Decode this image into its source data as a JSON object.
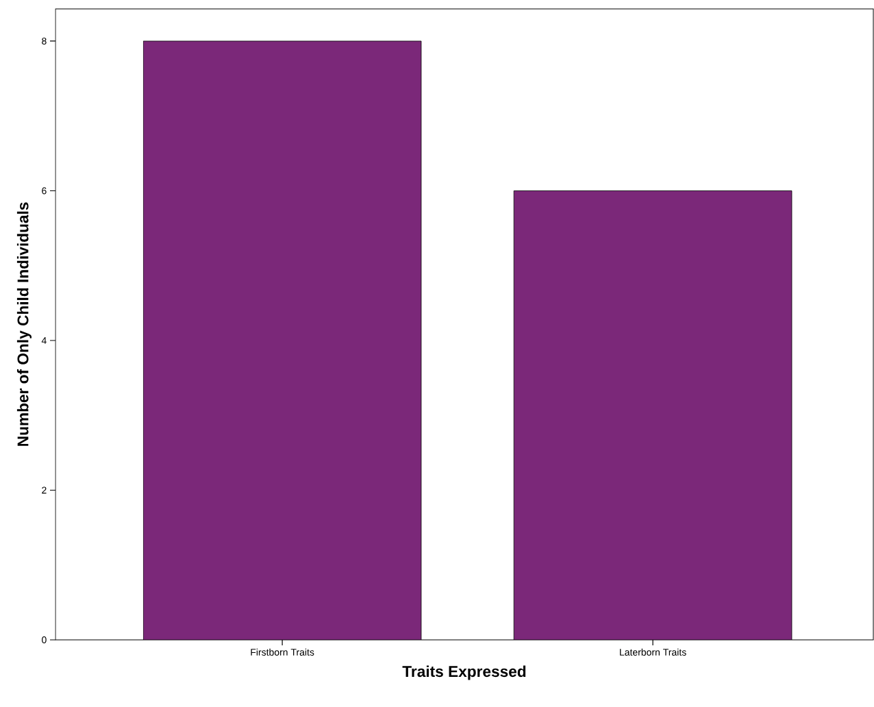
{
  "chart_data": {
    "type": "bar",
    "xlabel": "Traits Expressed",
    "ylabel": "Number of Only Child Individuals",
    "categories": [
      "Firstborn Traits",
      "Laterborn Traits"
    ],
    "values": [
      8,
      6
    ],
    "color": "#7b2879",
    "ylim": [
      0,
      8.43
    ],
    "yticks": [
      0,
      2,
      4,
      6,
      8
    ],
    "grid": false
  }
}
